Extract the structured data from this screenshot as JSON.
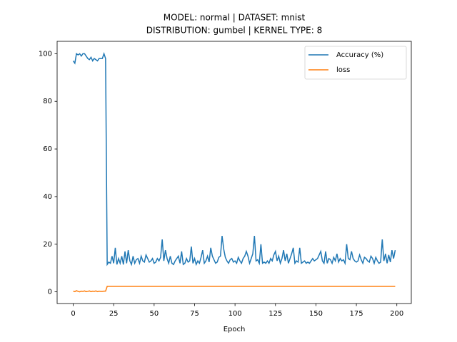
{
  "chart_data": {
    "type": "line",
    "title": "MODEL: normal | DATASET: mnist",
    "subtitle": "DISTRIBUTION: gumbel | KERNEL TYPE: 8",
    "x_label": "Epoch",
    "x": [
      0,
      1,
      2,
      3,
      4,
      5,
      6,
      7,
      8,
      9,
      10,
      11,
      12,
      13,
      14,
      15,
      16,
      17,
      18,
      19,
      20,
      21,
      22,
      23,
      24,
      25,
      26,
      27,
      28,
      29,
      30,
      31,
      32,
      33,
      34,
      35,
      36,
      37,
      38,
      39,
      40,
      41,
      42,
      43,
      44,
      45,
      46,
      47,
      48,
      49,
      50,
      51,
      52,
      53,
      54,
      55,
      56,
      57,
      58,
      59,
      60,
      61,
      62,
      63,
      64,
      65,
      66,
      67,
      68,
      69,
      70,
      71,
      72,
      73,
      74,
      75,
      76,
      77,
      78,
      79,
      80,
      81,
      82,
      83,
      84,
      85,
      86,
      87,
      88,
      89,
      90,
      91,
      92,
      93,
      94,
      95,
      96,
      97,
      98,
      99,
      100,
      101,
      102,
      103,
      104,
      105,
      106,
      107,
      108,
      109,
      110,
      111,
      112,
      113,
      114,
      115,
      116,
      117,
      118,
      119,
      120,
      121,
      122,
      123,
      124,
      125,
      126,
      127,
      128,
      129,
      130,
      131,
      132,
      133,
      134,
      135,
      136,
      137,
      138,
      139,
      140,
      141,
      142,
      143,
      144,
      145,
      146,
      147,
      148,
      149,
      150,
      151,
      152,
      153,
      154,
      155,
      156,
      157,
      158,
      159,
      160,
      161,
      162,
      163,
      164,
      165,
      166,
      167,
      168,
      169,
      170,
      171,
      172,
      173,
      174,
      175,
      176,
      177,
      178,
      179,
      180,
      181,
      182,
      183,
      184,
      185,
      186,
      187,
      188,
      189,
      190,
      191,
      192,
      193,
      194,
      195,
      196,
      197,
      198,
      199
    ],
    "series": [
      {
        "name": "Accuracy (%)",
        "color": "#1f77b4",
        "values": [
          97,
          96,
          100,
          99.5,
          100,
          99,
          100,
          100,
          99,
          98,
          97.5,
          98.5,
          97,
          98,
          97.5,
          97,
          98,
          98,
          98,
          100,
          98,
          11.5,
          12.5,
          12,
          15,
          12,
          18.5,
          11.5,
          14,
          12,
          15,
          11.5,
          17,
          12,
          17.5,
          13,
          11.5,
          15,
          12,
          13.5,
          14,
          12,
          15,
          13,
          12.5,
          15.5,
          14,
          12.5,
          13,
          14,
          12,
          12.5,
          14,
          13,
          14.5,
          22,
          13,
          17.5,
          14,
          12,
          15,
          12,
          11.5,
          13,
          14,
          15,
          12,
          17,
          11.5,
          12,
          14,
          12.5,
          13,
          19,
          12,
          14,
          11.5,
          13,
          12,
          14.5,
          17.5,
          12,
          13,
          15,
          12.5,
          18.5,
          15,
          13.5,
          12,
          12.5,
          14.5,
          15,
          23.5,
          18,
          14.5,
          13,
          12,
          13.5,
          14,
          12.5,
          13,
          12,
          14.5,
          13,
          12,
          14,
          15,
          17,
          15,
          12,
          14,
          16,
          23.5,
          13,
          13.5,
          12,
          20,
          12,
          12.5,
          12,
          13,
          12,
          14,
          13,
          15.5,
          17,
          13,
          15,
          12,
          14,
          17.5,
          13,
          16,
          12,
          14,
          16,
          18.5,
          12,
          13,
          12.5,
          18.5,
          12,
          12.5,
          13,
          12,
          12.5,
          12,
          13,
          14,
          13,
          13.5,
          14,
          15.5,
          17,
          13,
          12,
          17,
          12,
          14,
          13.5,
          12,
          14.5,
          13,
          16,
          12.5,
          14,
          13,
          13.5,
          12,
          20,
          14,
          13.5,
          17,
          14,
          13,
          12.5,
          13,
          15.5,
          13.5,
          12,
          14.5,
          14,
          13,
          12.5,
          15,
          14,
          12,
          14.5,
          13,
          12,
          12.5,
          22,
          13,
          16,
          12,
          15.5,
          12.5,
          17.5,
          14,
          17.5
        ]
      },
      {
        "name": "loss",
        "color": "#ff7f0e",
        "values": [
          0.3,
          0.1,
          0.5,
          0.2,
          0.0,
          0.3,
          0.2,
          0.4,
          0.1,
          0.2,
          0.4,
          0.1,
          0.3,
          0.2,
          0.4,
          0.1,
          0.3,
          0.2,
          0.2,
          0.3,
          0.3,
          2.3,
          2.3,
          2.3,
          2.3,
          2.3,
          2.3,
          2.3,
          2.3,
          2.3,
          2.3,
          2.3,
          2.3,
          2.3,
          2.3,
          2.3,
          2.3,
          2.3,
          2.3,
          2.3,
          2.3,
          2.3,
          2.3,
          2.3,
          2.3,
          2.3,
          2.3,
          2.3,
          2.3,
          2.3,
          2.3,
          2.3,
          2.3,
          2.3,
          2.3,
          2.3,
          2.3,
          2.3,
          2.3,
          2.3,
          2.3,
          2.3,
          2.3,
          2.3,
          2.3,
          2.3,
          2.3,
          2.3,
          2.3,
          2.3,
          2.3,
          2.3,
          2.3,
          2.3,
          2.3,
          2.3,
          2.3,
          2.3,
          2.3,
          2.3,
          2.3,
          2.3,
          2.3,
          2.3,
          2.3,
          2.3,
          2.3,
          2.3,
          2.3,
          2.3,
          2.3,
          2.3,
          2.3,
          2.3,
          2.3,
          2.3,
          2.3,
          2.3,
          2.3,
          2.3,
          2.3,
          2.3,
          2.3,
          2.3,
          2.3,
          2.3,
          2.3,
          2.3,
          2.3,
          2.3,
          2.3,
          2.3,
          2.3,
          2.3,
          2.3,
          2.3,
          2.3,
          2.3,
          2.3,
          2.3,
          2.3,
          2.3,
          2.3,
          2.3,
          2.3,
          2.3,
          2.3,
          2.3,
          2.3,
          2.3,
          2.3,
          2.3,
          2.3,
          2.3,
          2.3,
          2.3,
          2.3,
          2.3,
          2.3,
          2.3,
          2.3,
          2.3,
          2.3,
          2.3,
          2.3,
          2.3,
          2.3,
          2.3,
          2.3,
          2.3,
          2.3,
          2.3,
          2.3,
          2.3,
          2.3,
          2.3,
          2.3,
          2.3,
          2.3,
          2.3,
          2.3,
          2.3,
          2.3,
          2.3,
          2.3,
          2.3,
          2.3,
          2.3,
          2.3,
          2.3,
          2.3,
          2.3,
          2.3,
          2.3,
          2.3,
          2.3,
          2.3,
          2.3,
          2.3,
          2.3,
          2.3,
          2.3,
          2.3,
          2.3,
          2.3,
          2.3,
          2.3,
          2.3,
          2.3,
          2.3,
          2.3,
          2.3,
          2.3,
          2.3,
          2.3,
          2.3,
          2.3,
          2.3,
          2.3,
          2.3
        ]
      }
    ],
    "xlim": [
      -9.95,
      208.95
    ],
    "xticks": [
      0,
      25,
      50,
      75,
      100,
      125,
      150,
      175,
      200
    ],
    "ylim": [
      -4.9,
      105.2
    ],
    "yticks": [
      0,
      20,
      40,
      60,
      80,
      100
    ],
    "grid": false,
    "legend": "upper right"
  }
}
